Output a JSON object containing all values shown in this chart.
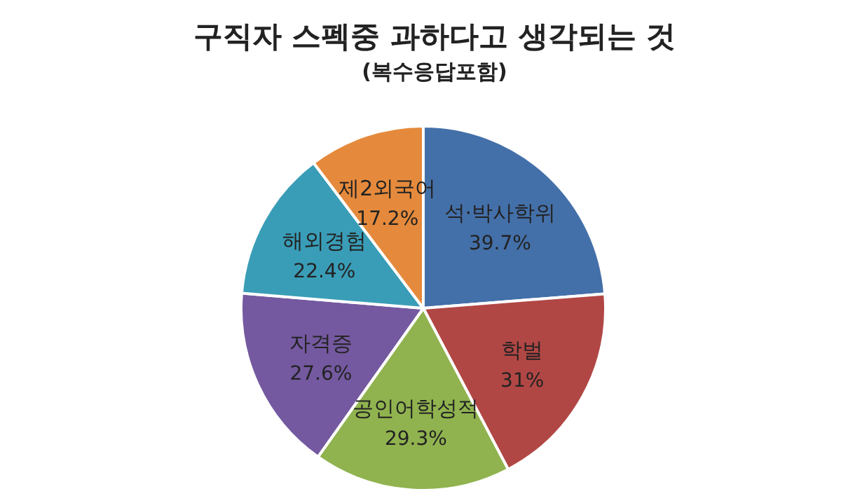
{
  "chart_data": {
    "type": "pie",
    "title": "구직자 스펙중 과하다고 생각되는 것",
    "subtitle": "(복수응답포함)",
    "categories": [
      "석·박사학위",
      "학벌",
      "공인어학성적",
      "자격증",
      "해외경험",
      "제2외국어"
    ],
    "values": [
      39.7,
      31,
      29.3,
      27.6,
      22.4,
      17.2
    ],
    "value_labels": [
      "39.7%",
      "31%",
      "29.3%",
      "27.6%",
      "22.4%",
      "17.2%"
    ],
    "colors": [
      "#4470a9",
      "#b14745",
      "#90b34f",
      "#7459a0",
      "#3a9db7",
      "#e58a3c"
    ]
  }
}
